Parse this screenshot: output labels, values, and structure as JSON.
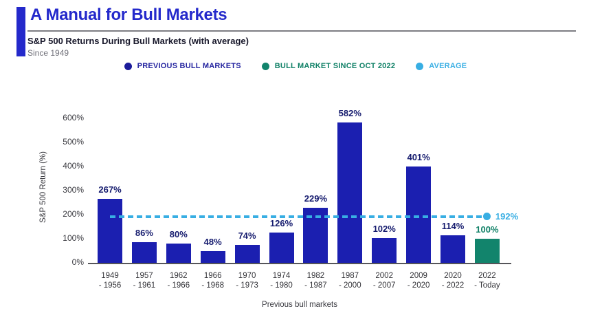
{
  "header": {
    "title": "A Manual for Bull Markets",
    "subtitle": "S&P 500 Returns During Bull Markets (with average)",
    "since": "Since 1949"
  },
  "legend": [
    {
      "label": "PREVIOUS BULL MARKETS",
      "dot_color": "#1b1b9a",
      "text_color": "#2525a0"
    },
    {
      "label": "BULL MARKET SINCE OCT 2022",
      "dot_color": "#12846c",
      "text_color": "#0f8066"
    },
    {
      "label": "AVERAGE",
      "dot_color": "#38aee3",
      "text_color": "#3aafe4"
    }
  ],
  "chart_data": {
    "type": "bar",
    "categories": [
      [
        "1949",
        "- 1956"
      ],
      [
        "1957",
        "- 1961"
      ],
      [
        "1962",
        "- 1966"
      ],
      [
        "1966",
        "- 1968"
      ],
      [
        "1970",
        "- 1973"
      ],
      [
        "1974",
        "- 1980"
      ],
      [
        "1982",
        "- 1987"
      ],
      [
        "1987",
        "- 2000"
      ],
      [
        "2002",
        "- 2007"
      ],
      [
        "2009",
        "- 2020"
      ],
      [
        "2020",
        "- 2022"
      ],
      [
        "2022",
        "- Today"
      ]
    ],
    "values": [
      267,
      86,
      80,
      48,
      74,
      126,
      229,
      582,
      102,
      401,
      114,
      100
    ],
    "value_labels": [
      "267%",
      "86%",
      "80%",
      "48%",
      "74%",
      "126%",
      "229%",
      "582%",
      "102%",
      "401%",
      "114%",
      "100%"
    ],
    "highlight_index": 11,
    "average": 192,
    "average_label": "192%",
    "ylabel": "S&P 500 Return (%)",
    "xlabel": "Previous bull markets",
    "yticks": [
      0,
      100,
      200,
      300,
      400,
      500,
      600
    ],
    "ytick_labels": [
      "0%",
      "100%",
      "200%",
      "300%",
      "400%",
      "500%",
      "600%"
    ],
    "ylim": [
      0,
      600
    ],
    "grid": false,
    "legend_position": "top",
    "colors": {
      "bar": "#1b1fb0",
      "highlight_bar": "#12846c",
      "value_label": "#151b6e",
      "highlight_value_label": "#0f8066",
      "average": "#38aee3"
    }
  }
}
